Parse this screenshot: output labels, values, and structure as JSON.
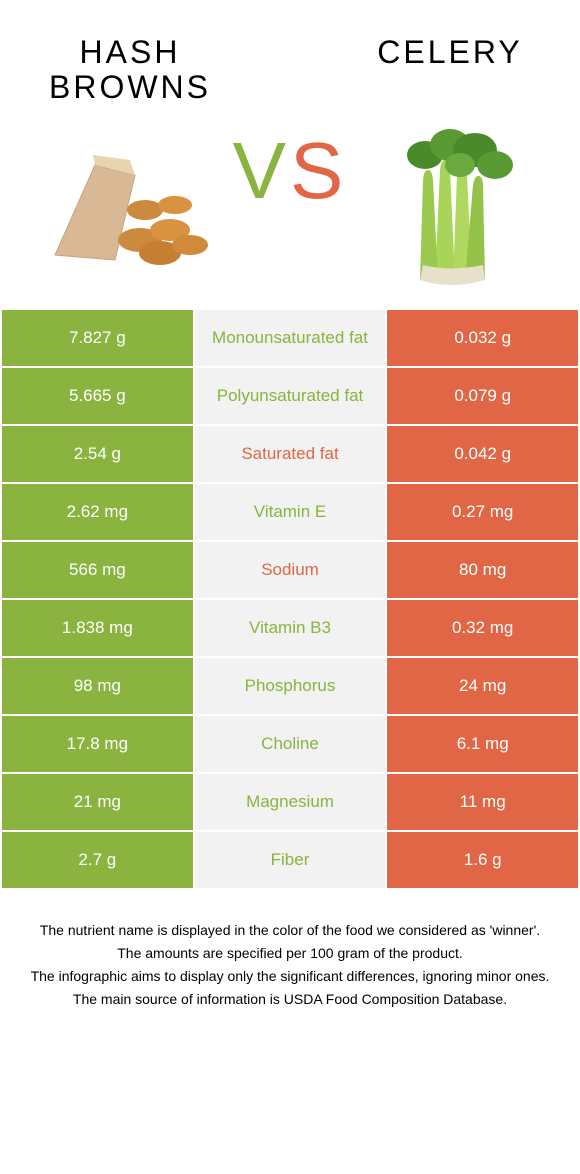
{
  "colors": {
    "green": "#8bb33f",
    "orange": "#e06645",
    "midBg": "#f2f2f2"
  },
  "food1": {
    "title": "HASH BROWNS"
  },
  "food2": {
    "title": "CELERY"
  },
  "vs": {
    "v": "V",
    "s": "S"
  },
  "rows": [
    {
      "left": "7.827 g",
      "mid": "Monounsaturated fat",
      "right": "0.032 g",
      "midColor": "green"
    },
    {
      "left": "5.665 g",
      "mid": "Polyunsaturated fat",
      "right": "0.079 g",
      "midColor": "green"
    },
    {
      "left": "2.54 g",
      "mid": "Saturated fat",
      "right": "0.042 g",
      "midColor": "orange"
    },
    {
      "left": "2.62 mg",
      "mid": "Vitamin E",
      "right": "0.27 mg",
      "midColor": "green"
    },
    {
      "left": "566 mg",
      "mid": "Sodium",
      "right": "80 mg",
      "midColor": "orange"
    },
    {
      "left": "1.838 mg",
      "mid": "Vitamin B3",
      "right": "0.32 mg",
      "midColor": "green"
    },
    {
      "left": "98 mg",
      "mid": "Phosphorus",
      "right": "24 mg",
      "midColor": "green"
    },
    {
      "left": "17.8 mg",
      "mid": "Choline",
      "right": "6.1 mg",
      "midColor": "green"
    },
    {
      "left": "21 mg",
      "mid": "Magnesium",
      "right": "11 mg",
      "midColor": "green"
    },
    {
      "left": "2.7 g",
      "mid": "Fiber",
      "right": "1.6 g",
      "midColor": "green"
    }
  ],
  "footer": {
    "line1": "The nutrient name is displayed in the color of the food we considered as 'winner'.",
    "line2": "The amounts are specified per 100 gram of the product.",
    "line3": "The infographic aims to display only the significant differences, ignoring minor ones.",
    "line4": "The main source of information is USDA Food Composition Database."
  }
}
